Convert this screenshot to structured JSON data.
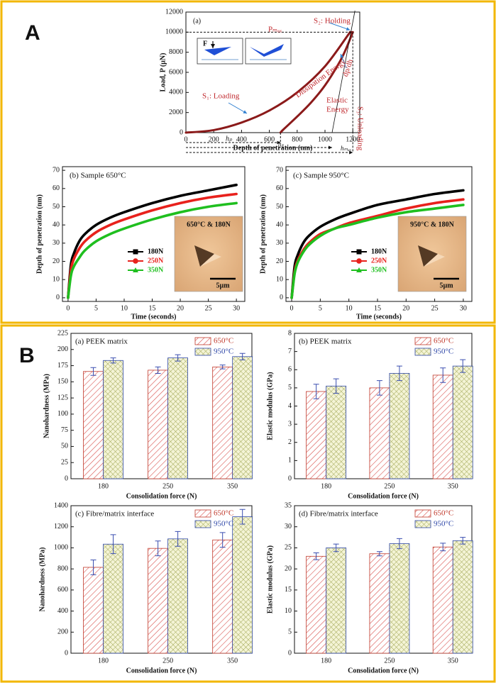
{
  "panel_labels": [
    "A",
    "B"
  ],
  "chart_data": [
    {
      "type": "line",
      "title": "(a)",
      "xlabel": "Depth of penetration (nm)",
      "ylabel": "Load, P (µN)",
      "xlim": [
        0,
        1250
      ],
      "ylim": [
        0,
        12000
      ],
      "xticks": [
        0,
        200,
        400,
        600,
        800,
        1000,
        1200
      ],
      "yticks": [
        0,
        2000,
        4000,
        6000,
        8000,
        10000,
        12000
      ],
      "series": [
        {
          "color": "#8b1a1a",
          "x": [
            0,
            200,
            400,
            600,
            800,
            1000,
            1180
          ],
          "values": [
            0,
            250,
            1000,
            2200,
            4000,
            6600,
            10000
          ]
        },
        {
          "color": "#8b1a1a",
          "x": [
            1200,
            1150,
            1100,
            1000,
            900,
            800,
            700,
            680
          ],
          "values": [
            10000,
            8300,
            6900,
            4700,
            3000,
            1600,
            300,
            0
          ]
        },
        {
          "color": "#8b1a1a",
          "x": [
            1180,
            1200
          ],
          "values": [
            10000,
            10000
          ]
        }
      ],
      "annotations": [
        "Pₘₐₓ",
        "S₂: Holding",
        "dp/dh",
        "S₃: Unloading",
        "Elastic",
        "Energy",
        "Dissipation Energy",
        "S₁: Loading",
        "F",
        "hₚ",
        "hₛ",
        "hₘₐₓ"
      ]
    },
    {
      "type": "line",
      "title": "(b) Sample 650°C",
      "xlabel": "Time (seconds)",
      "ylabel": "Depth of penetration (nm)",
      "xlim": [
        -1,
        31.5
      ],
      "ylim": [
        -2,
        72
      ],
      "xticks": [
        0,
        5,
        10,
        15,
        20,
        25,
        30
      ],
      "yticks": [
        0,
        10,
        20,
        30,
        40,
        50,
        60,
        70
      ],
      "x": [
        0,
        0.5,
        1,
        2,
        3,
        5,
        7.5,
        10,
        15,
        20,
        25,
        30
      ],
      "series": [
        {
          "name": "180N",
          "color": "#000000",
          "marker": "square",
          "values": [
            0,
            18,
            24,
            31,
            35,
            40,
            44,
            47,
            52,
            56,
            59,
            62
          ]
        },
        {
          "name": "250N",
          "color": "#e8211c",
          "marker": "circle",
          "values": [
            0,
            15,
            21,
            27,
            31,
            36,
            40,
            43,
            48,
            52,
            55,
            57
          ]
        },
        {
          "name": "350N",
          "color": "#1fbf1f",
          "marker": "triangle",
          "values": [
            0,
            12,
            17,
            22,
            26,
            31,
            35,
            38,
            43,
            47,
            50,
            52
          ]
        }
      ],
      "inset": {
        "label": "650°C & 180N",
        "scale": "5µm"
      }
    },
    {
      "type": "line",
      "title": "(c) Sample 950°C",
      "xlabel": "Time (seconds)",
      "ylabel": "Depth of penetration (nm)",
      "xlim": [
        -1,
        31.5
      ],
      "ylim": [
        -2,
        72
      ],
      "xticks": [
        0,
        5,
        10,
        15,
        20,
        25,
        30
      ],
      "yticks": [
        0,
        10,
        20,
        30,
        40,
        50,
        60,
        70
      ],
      "x": [
        0,
        0.5,
        1,
        2,
        3,
        5,
        7.5,
        10,
        15,
        20,
        25,
        30
      ],
      "series": [
        {
          "name": "180N",
          "color": "#000000",
          "marker": "square",
          "values": [
            0,
            17,
            23,
            30,
            34,
            39,
            43,
            46,
            51,
            54,
            57,
            59
          ]
        },
        {
          "name": "250N",
          "color": "#e8211c",
          "marker": "circle",
          "values": [
            0,
            14,
            20,
            26,
            30,
            35,
            38,
            41,
            45,
            49,
            52,
            54
          ]
        },
        {
          "name": "350N",
          "color": "#1fbf1f",
          "marker": "triangle",
          "values": [
            0,
            13,
            19,
            25,
            29,
            34,
            38,
            40,
            44,
            47,
            49,
            51
          ]
        }
      ],
      "inset": {
        "label": "950°C & 180N",
        "scale": "5µm"
      }
    },
    {
      "type": "bar",
      "title": "(a) PEEK matrix",
      "xlabel": "Consolidation force (N)",
      "ylabel": "Nanohardness (MPa)",
      "categories": [
        "180",
        "250",
        "350"
      ],
      "ylim": [
        0,
        225
      ],
      "yticks": [
        0,
        25,
        50,
        75,
        100,
        125,
        150,
        175,
        200,
        225
      ],
      "series": [
        {
          "name": "650°C",
          "color": "#c0392b",
          "hatch": "diagonal",
          "values": [
            166,
            168,
            173
          ],
          "errors": [
            6,
            5,
            3
          ]
        },
        {
          "name": "950°C",
          "color": "#2e47a8",
          "hatch": "cross",
          "values": [
            183,
            187,
            189
          ],
          "errors": [
            4,
            5,
            5
          ]
        }
      ]
    },
    {
      "type": "bar",
      "title": "(b) PEEK matrix",
      "xlabel": "Consolidation force (N)",
      "ylabel": "Elastic modulus (GPa)",
      "categories": [
        "180",
        "250",
        "350"
      ],
      "ylim": [
        0,
        8
      ],
      "yticks": [
        0,
        1,
        2,
        3,
        4,
        5,
        6,
        7,
        8
      ],
      "series": [
        {
          "name": "650°C",
          "color": "#c0392b",
          "hatch": "diagonal",
          "values": [
            4.8,
            5.0,
            5.7
          ],
          "errors": [
            0.4,
            0.4,
            0.4
          ]
        },
        {
          "name": "950°C",
          "color": "#2e47a8",
          "hatch": "cross",
          "values": [
            5.1,
            5.8,
            6.2
          ],
          "errors": [
            0.4,
            0.4,
            0.35
          ]
        }
      ]
    },
    {
      "type": "bar",
      "title": "(c) Fibre/matrix interface",
      "xlabel": "Consolidation force (N)",
      "ylabel": "Nanohardness (MPa)",
      "categories": [
        "180",
        "250",
        "350"
      ],
      "ylim": [
        0,
        1400
      ],
      "yticks": [
        0,
        200,
        400,
        600,
        800,
        1000,
        1200,
        1400
      ],
      "series": [
        {
          "name": "650°C",
          "color": "#c0392b",
          "hatch": "diagonal",
          "values": [
            815,
            995,
            1075
          ],
          "errors": [
            70,
            70,
            70
          ]
        },
        {
          "name": "950°C",
          "color": "#2e47a8",
          "hatch": "cross",
          "values": [
            1035,
            1085,
            1295
          ],
          "errors": [
            90,
            70,
            70
          ]
        }
      ]
    },
    {
      "type": "bar",
      "title": "(d) Fibre/matrix interface",
      "xlabel": "Consolidation force (N)",
      "ylabel": "Elastic modulus (GPa)",
      "categories": [
        "180",
        "250",
        "350"
      ],
      "ylim": [
        0,
        35
      ],
      "yticks": [
        0,
        5,
        10,
        15,
        20,
        25,
        30,
        35
      ],
      "series": [
        {
          "name": "650°C",
          "color": "#c0392b",
          "hatch": "diagonal",
          "values": [
            23,
            23.6,
            25.2
          ],
          "errors": [
            0.8,
            0.5,
            0.9
          ]
        },
        {
          "name": "950°C",
          "color": "#2e47a8",
          "hatch": "cross",
          "values": [
            25,
            26,
            26.7
          ],
          "errors": [
            0.9,
            1.2,
            0.8
          ]
        }
      ]
    }
  ]
}
